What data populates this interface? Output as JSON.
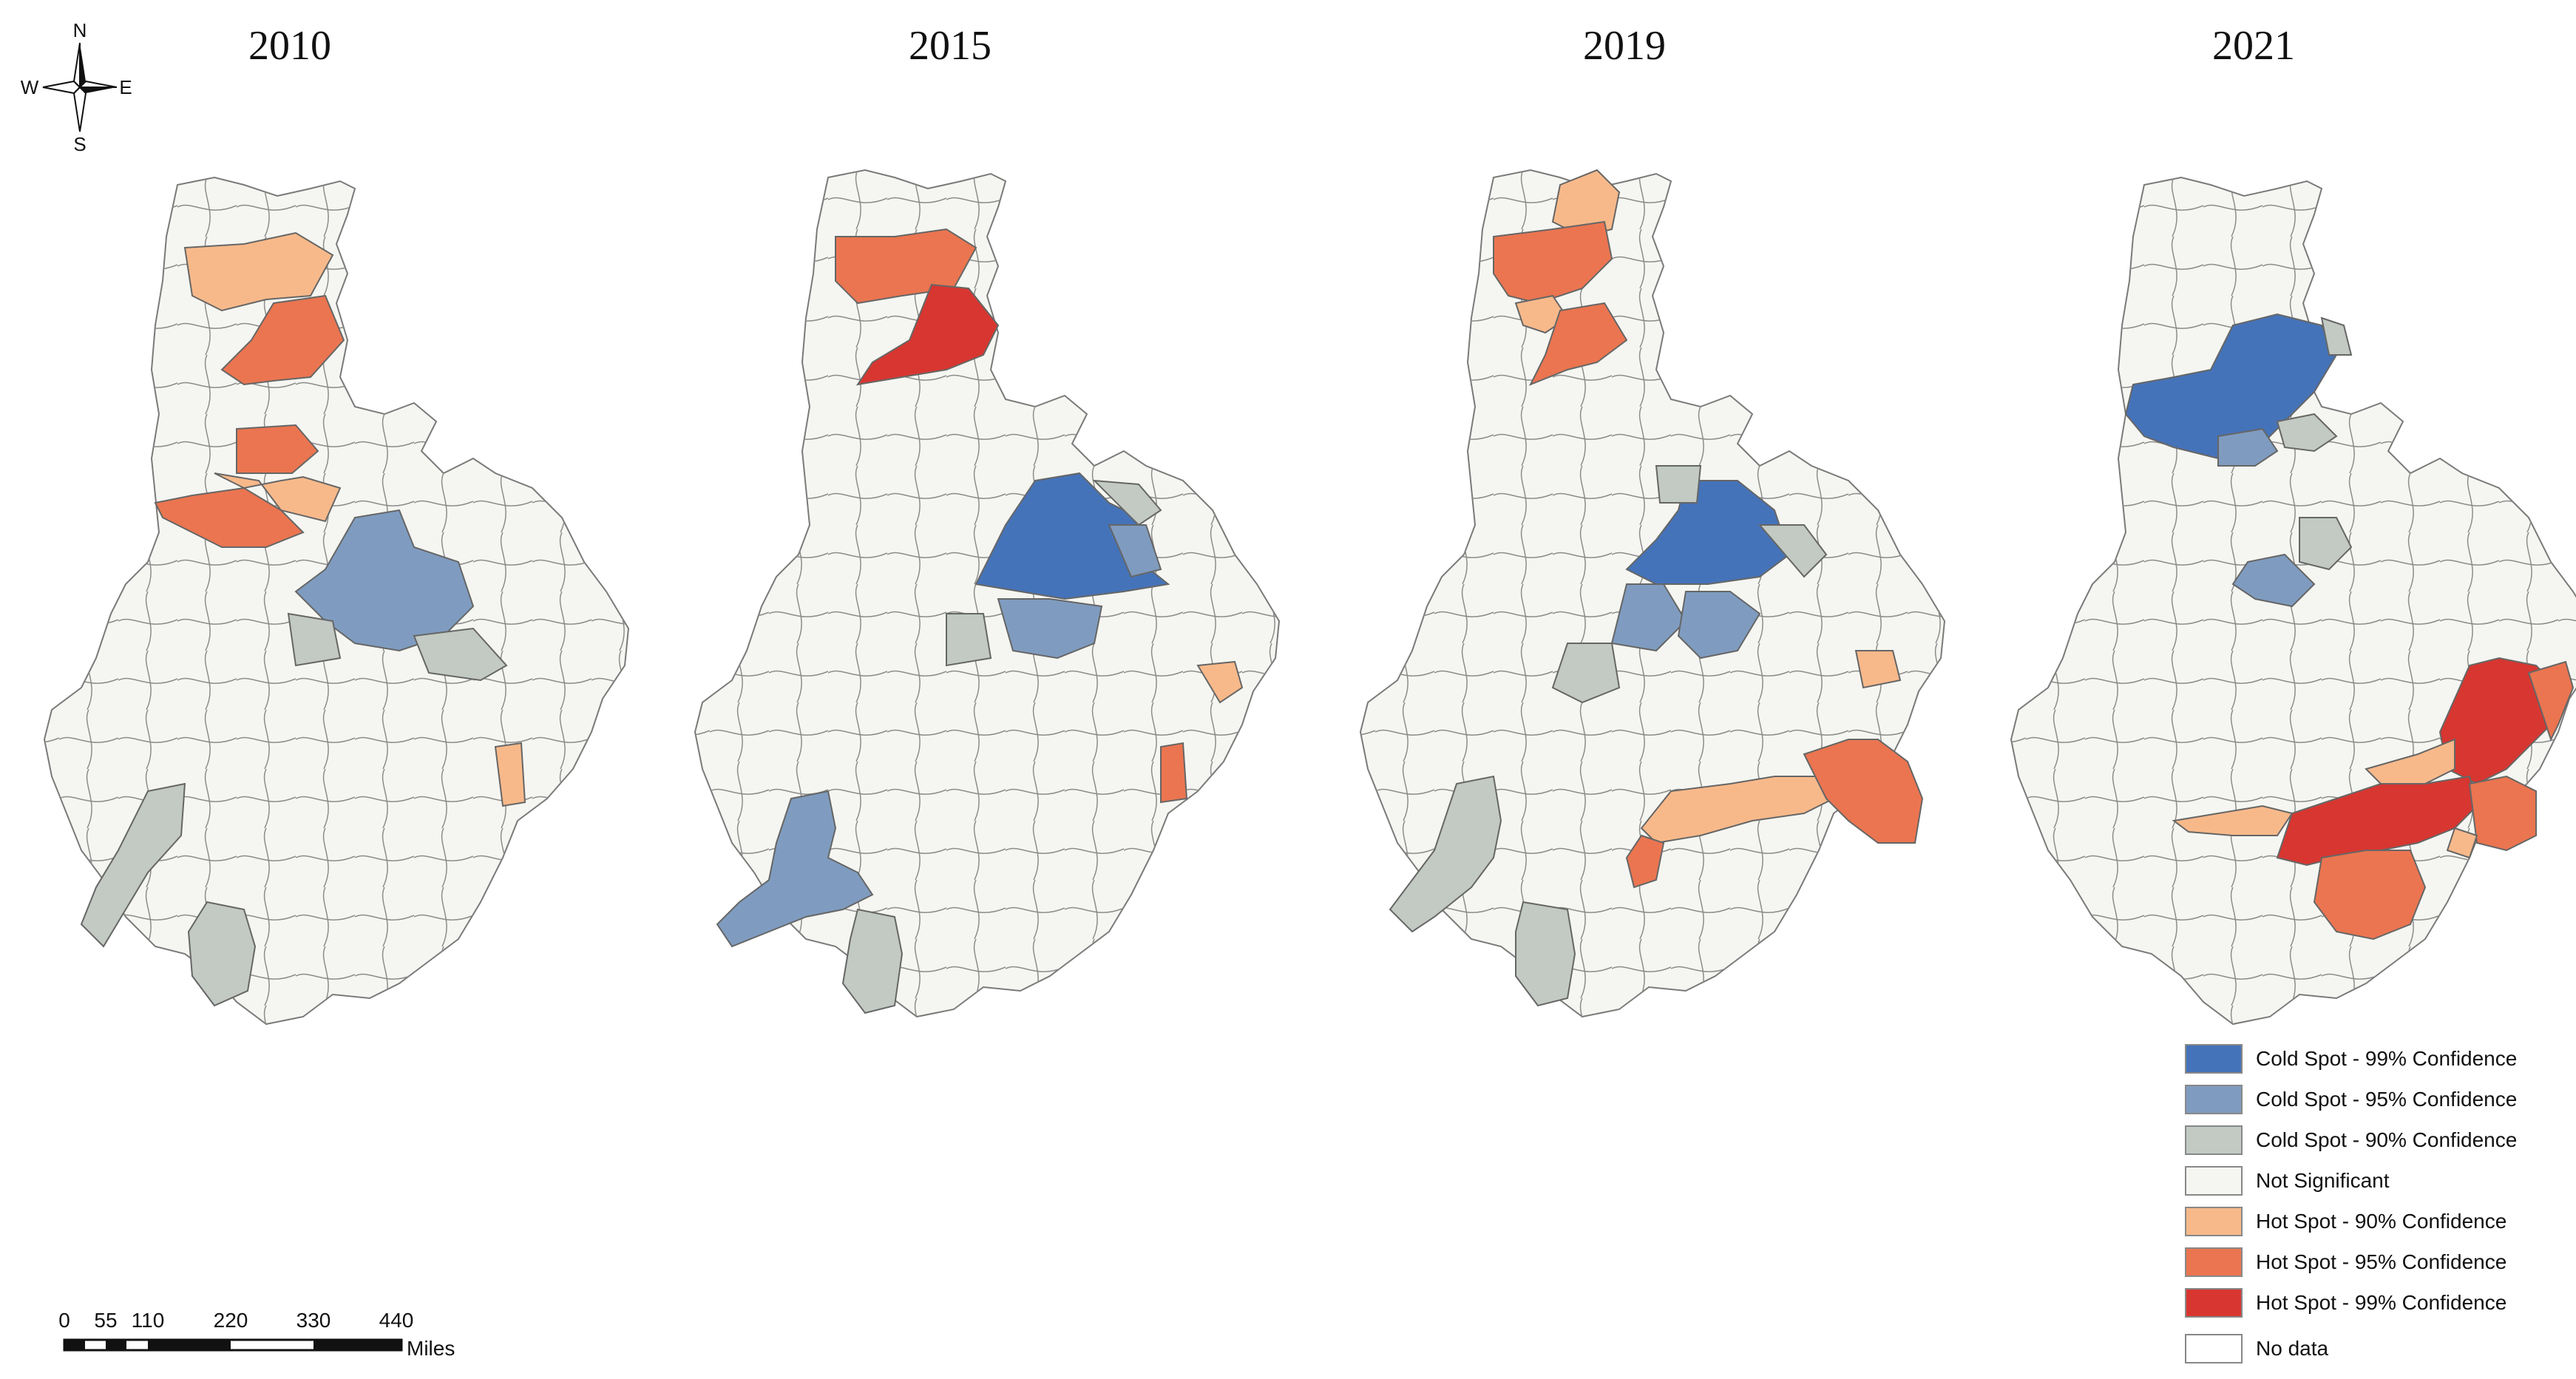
{
  "panels": [
    {
      "year": "2010"
    },
    {
      "year": "2015"
    },
    {
      "year": "2019"
    },
    {
      "year": "2021"
    }
  ],
  "compass": {
    "north": "N",
    "south": "S",
    "east": "E",
    "west": "W"
  },
  "legend": [
    {
      "label": "Cold Spot - 99% Confidence",
      "color": "#4573b9"
    },
    {
      "label": "Cold Spot - 95% Confidence",
      "color": "#7f9cc0"
    },
    {
      "label": "Cold Spot - 90% Confidence",
      "color": "#c2cac3"
    },
    {
      "label": "Not Significant",
      "color": "#f5f6f1"
    },
    {
      "label": "Hot Spot - 90% Confidence",
      "color": "#f8b98a"
    },
    {
      "label": "Hot Spot - 95% Confidence",
      "color": "#eb7550"
    },
    {
      "label": "Hot Spot - 99% Confidence",
      "color": "#d83630"
    },
    {
      "label": "No data",
      "color": "#ffffff"
    }
  ],
  "scalebar": {
    "ticks": [
      "0",
      "55",
      "110",
      "220",
      "330",
      "440"
    ],
    "unit": "Miles"
  }
}
